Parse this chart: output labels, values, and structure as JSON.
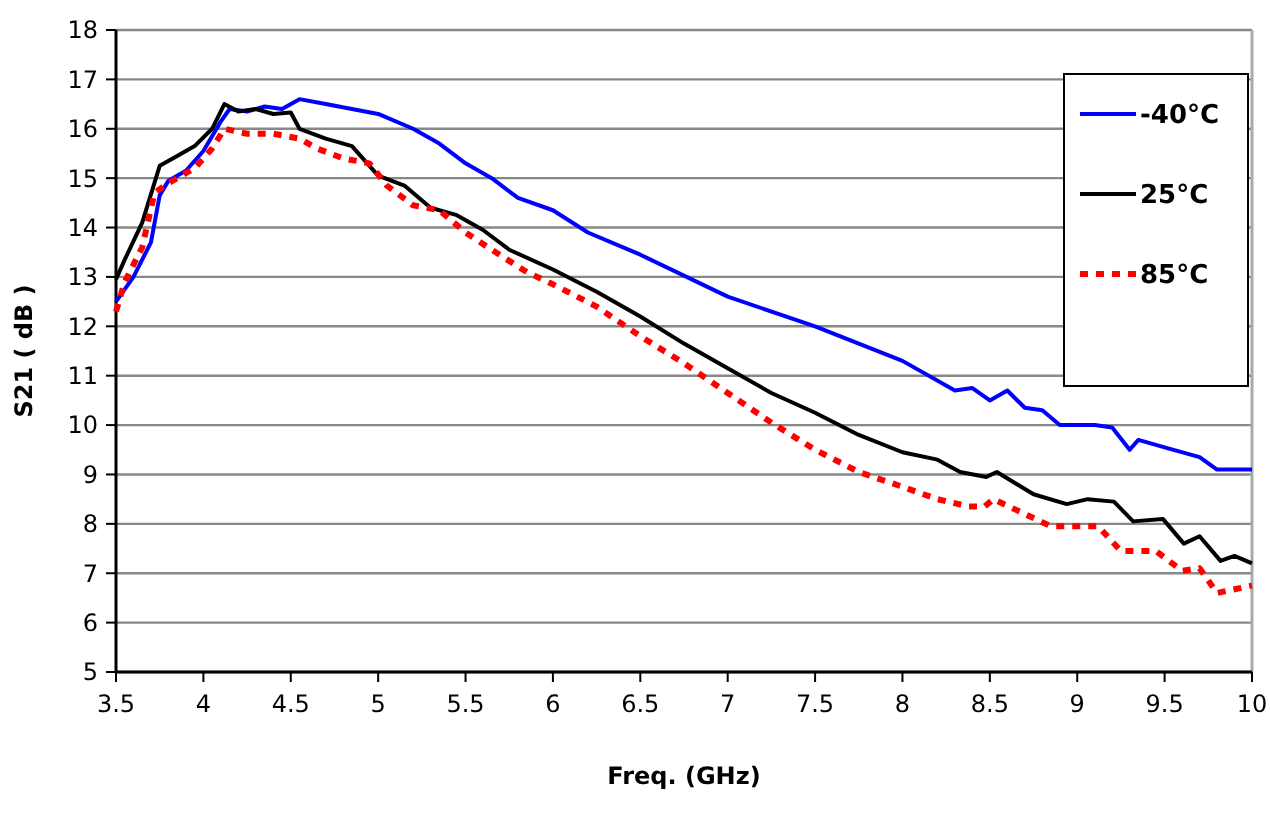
{
  "chart_data": {
    "type": "line",
    "xlabel": "Freq. (GHz)",
    "ylabel": "S21 ( dB )",
    "xlim": [
      3.5,
      10
    ],
    "ylim": [
      5,
      18
    ],
    "xticks": [
      3.5,
      4,
      4.5,
      5,
      5.5,
      6,
      6.5,
      7,
      7.5,
      8,
      8.5,
      9,
      9.5,
      10
    ],
    "yticks": [
      5,
      6,
      7,
      8,
      9,
      10,
      11,
      12,
      13,
      14,
      15,
      16,
      17,
      18
    ],
    "grid": "y",
    "legend": "top right",
    "series": [
      {
        "name": "-40°C",
        "color": "#0000ff",
        "line_style": "solid",
        "x": [
          3.5,
          3.6,
          3.7,
          3.75,
          3.8,
          3.9,
          4.0,
          4.1,
          4.15,
          4.25,
          4.35,
          4.45,
          4.55,
          4.7,
          4.85,
          5.0,
          5.2,
          5.35,
          5.5,
          5.65,
          5.8,
          6.0,
          6.2,
          6.5,
          7.0,
          7.5,
          8.0,
          8.3,
          8.4,
          8.5,
          8.6,
          8.7,
          8.8,
          8.9,
          9.1,
          9.2,
          9.3,
          9.35,
          9.5,
          9.7,
          9.8,
          10
        ],
        "values": [
          12.5,
          13.0,
          13.7,
          14.65,
          14.95,
          15.15,
          15.55,
          16.15,
          16.4,
          16.35,
          16.45,
          16.4,
          16.6,
          16.5,
          16.4,
          16.3,
          16.0,
          15.7,
          15.3,
          15.0,
          14.6,
          14.35,
          13.9,
          13.45,
          12.6,
          12.0,
          11.3,
          10.7,
          10.75,
          10.5,
          10.7,
          10.35,
          10.3,
          10.0,
          10.0,
          9.95,
          9.5,
          9.7,
          9.55,
          9.35,
          9.1,
          9.1
        ]
      },
      {
        "name": "25°C",
        "color": "#000000",
        "line_style": "solid",
        "x": [
          3.5,
          3.55,
          3.65,
          3.75,
          3.85,
          3.95,
          4.05,
          4.12,
          4.2,
          4.3,
          4.4,
          4.5,
          4.55,
          4.7,
          4.85,
          5.0,
          5.15,
          5.3,
          5.45,
          5.6,
          5.75,
          6.0,
          6.25,
          6.5,
          6.75,
          7.0,
          7.25,
          7.5,
          7.75,
          8.0,
          8.2,
          8.33,
          8.48,
          8.54,
          8.75,
          8.94,
          9.06,
          9.21,
          9.32,
          9.49,
          9.61,
          9.7,
          9.82,
          9.9,
          10
        ],
        "values": [
          12.95,
          13.35,
          14.1,
          15.25,
          15.45,
          15.65,
          16.0,
          16.5,
          16.35,
          16.4,
          16.3,
          16.33,
          16.0,
          15.8,
          15.65,
          15.05,
          14.85,
          14.4,
          14.25,
          13.95,
          13.55,
          13.15,
          12.7,
          12.2,
          11.65,
          11.15,
          10.65,
          10.25,
          9.8,
          9.45,
          9.3,
          9.05,
          8.95,
          9.05,
          8.6,
          8.4,
          8.5,
          8.45,
          8.05,
          8.1,
          7.6,
          7.75,
          7.25,
          7.35,
          7.2
        ]
      },
      {
        "name": "85°C",
        "color": "#ff0000",
        "line_style": "dotted",
        "x": [
          3.5,
          3.55,
          3.65,
          3.72,
          3.8,
          3.95,
          4.05,
          4.12,
          4.25,
          4.4,
          4.55,
          4.65,
          4.8,
          4.95,
          5.05,
          5.2,
          5.35,
          5.5,
          5.65,
          5.85,
          6.0,
          6.25,
          6.5,
          6.75,
          7.0,
          7.25,
          7.5,
          7.75,
          8.0,
          8.2,
          8.38,
          8.47,
          8.52,
          8.7,
          8.85,
          9.0,
          9.12,
          9.25,
          9.45,
          9.6,
          9.7,
          9.8,
          10
        ],
        "values": [
          12.3,
          12.9,
          13.6,
          14.7,
          14.9,
          15.2,
          15.6,
          16.0,
          15.9,
          15.9,
          15.8,
          15.6,
          15.4,
          15.3,
          14.85,
          14.45,
          14.35,
          13.9,
          13.55,
          13.1,
          12.85,
          12.4,
          11.8,
          11.25,
          10.65,
          10.05,
          9.5,
          9.05,
          8.75,
          8.5,
          8.35,
          8.35,
          8.5,
          8.2,
          7.95,
          7.95,
          7.95,
          7.45,
          7.45,
          7.05,
          7.1,
          6.6,
          6.75
        ]
      }
    ]
  }
}
